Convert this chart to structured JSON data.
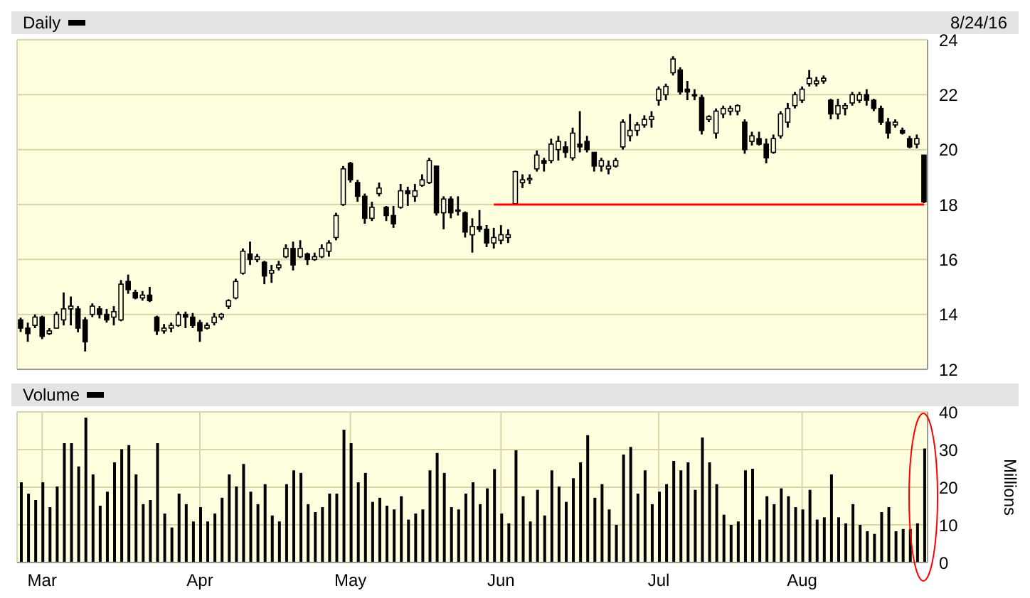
{
  "chart_data": [
    {
      "type": "candlestick",
      "title": "Daily",
      "annotations": [
        "8/24/16"
      ],
      "color": "#000000",
      "categories": [
        null,
        null,
        null,
        null,
        null,
        null,
        null,
        null,
        null,
        null,
        null,
        null,
        null,
        null,
        null,
        null,
        null,
        null,
        null,
        null,
        null,
        null,
        null,
        null,
        null,
        null,
        null,
        null,
        null,
        null,
        null,
        null,
        null,
        null,
        null,
        null,
        null,
        null,
        null,
        null,
        null,
        null,
        null,
        null,
        null,
        null,
        null,
        null,
        null,
        null,
        null,
        null,
        null,
        null,
        null,
        null,
        null,
        null,
        null,
        null,
        null,
        null,
        null,
        null,
        null,
        null,
        null,
        null,
        null,
        null,
        null,
        null,
        null,
        null,
        null,
        null,
        null,
        null,
        null,
        null,
        null,
        null,
        null,
        null,
        null,
        null,
        null,
        null,
        null,
        null,
        null,
        null,
        null,
        null,
        null,
        null,
        null,
        null,
        null,
        null,
        null,
        null,
        null,
        null,
        null,
        null,
        null,
        null,
        null,
        null,
        null,
        null,
        null,
        null,
        null,
        null,
        null,
        null,
        null,
        null,
        null,
        null,
        null,
        null,
        null,
        null,
        null
      ],
      "ohlc": [
        [
          13.8,
          13.88,
          13.36,
          13.5
        ],
        [
          13.5,
          13.7,
          13.0,
          13.3
        ],
        [
          13.6,
          14.0,
          13.5,
          13.9
        ],
        [
          13.9,
          13.95,
          13.1,
          13.2
        ],
        [
          13.3,
          13.5,
          13.25,
          13.4
        ],
        [
          13.5,
          14.1,
          13.5,
          14.0
        ],
        [
          13.8,
          14.8,
          13.6,
          14.2
        ],
        [
          14.2,
          14.65,
          13.6,
          14.3
        ],
        [
          14.2,
          14.3,
          13.35,
          13.5
        ],
        [
          13.8,
          13.9,
          12.65,
          13.0
        ],
        [
          14.0,
          14.4,
          13.9,
          14.3
        ],
        [
          14.2,
          14.3,
          13.85,
          14.0
        ],
        [
          14.0,
          14.2,
          13.7,
          13.8
        ],
        [
          13.9,
          14.3,
          13.6,
          14.1
        ],
        [
          13.8,
          15.25,
          13.75,
          15.1
        ],
        [
          15.2,
          15.45,
          14.75,
          14.9
        ],
        [
          14.8,
          14.9,
          14.55,
          14.6
        ],
        [
          14.6,
          14.85,
          14.5,
          14.7
        ],
        [
          14.7,
          15.0,
          14.45,
          14.5
        ],
        [
          13.9,
          13.95,
          13.25,
          13.4
        ],
        [
          13.4,
          13.65,
          13.3,
          13.5
        ],
        [
          13.5,
          13.7,
          13.35,
          13.6
        ],
        [
          13.6,
          14.1,
          13.55,
          14.0
        ],
        [
          14.0,
          14.1,
          13.5,
          13.9
        ],
        [
          13.9,
          14.05,
          13.5,
          13.6
        ],
        [
          13.7,
          13.8,
          13.0,
          13.4
        ],
        [
          13.5,
          13.7,
          13.45,
          13.6
        ],
        [
          13.7,
          14.05,
          13.6,
          13.9
        ],
        [
          13.9,
          14.05,
          13.8,
          14.0
        ],
        [
          14.3,
          14.55,
          14.2,
          14.5
        ],
        [
          14.6,
          15.3,
          14.55,
          15.2
        ],
        [
          15.5,
          16.4,
          15.45,
          16.3
        ],
        [
          16.2,
          16.65,
          15.8,
          16.0
        ],
        [
          16.0,
          16.2,
          15.9,
          16.1
        ],
        [
          15.9,
          15.95,
          15.1,
          15.4
        ],
        [
          15.5,
          15.8,
          15.15,
          15.6
        ],
        [
          15.7,
          15.95,
          15.6,
          15.8
        ],
        [
          16.1,
          16.55,
          16.05,
          16.4
        ],
        [
          16.4,
          16.65,
          15.6,
          15.8
        ],
        [
          16.1,
          16.7,
          16.05,
          16.4
        ],
        [
          16.2,
          16.25,
          15.8,
          16.0
        ],
        [
          16.0,
          16.25,
          15.95,
          16.1
        ],
        [
          16.1,
          16.55,
          16.05,
          16.4
        ],
        [
          16.3,
          16.7,
          16.1,
          16.6
        ],
        [
          16.8,
          17.7,
          16.7,
          17.6
        ],
        [
          18.0,
          19.4,
          17.95,
          19.3
        ],
        [
          19.5,
          19.55,
          18.8,
          18.9
        ],
        [
          18.8,
          18.9,
          18.1,
          18.3
        ],
        [
          18.3,
          18.4,
          17.3,
          17.5
        ],
        [
          17.5,
          18.1,
          17.4,
          17.9
        ],
        [
          18.4,
          18.8,
          18.3,
          18.6
        ],
        [
          17.9,
          17.95,
          17.4,
          17.6
        ],
        [
          17.6,
          17.95,
          17.15,
          17.3
        ],
        [
          17.9,
          18.75,
          17.85,
          18.5
        ],
        [
          18.5,
          18.65,
          17.95,
          18.4
        ],
        [
          18.3,
          18.75,
          18.1,
          18.5
        ],
        [
          18.7,
          19.1,
          18.65,
          18.9
        ],
        [
          18.8,
          19.7,
          18.75,
          19.6
        ],
        [
          19.4,
          19.4,
          17.6,
          17.7
        ],
        [
          17.7,
          18.3,
          17.1,
          18.2
        ],
        [
          18.2,
          18.3,
          17.5,
          17.7
        ],
        [
          17.8,
          18.3,
          17.6,
          17.8
        ],
        [
          17.7,
          17.75,
          16.8,
          17.0
        ],
        [
          16.9,
          17.5,
          16.25,
          17.2
        ],
        [
          17.2,
          17.8,
          17.0,
          17.1
        ],
        [
          17.1,
          17.25,
          16.45,
          16.6
        ],
        [
          16.6,
          17.15,
          16.4,
          16.8
        ],
        [
          16.7,
          17.25,
          16.55,
          16.9
        ],
        [
          16.8,
          17.1,
          16.6,
          16.9
        ],
        [
          18.03,
          19.23,
          18.03,
          19.2
        ],
        [
          18.8,
          19.1,
          18.6,
          18.9
        ],
        [
          18.9,
          19.1,
          18.75,
          18.95
        ],
        [
          19.3,
          19.97,
          19.2,
          19.8
        ],
        [
          19.6,
          19.7,
          19.2,
          19.5
        ],
        [
          19.6,
          20.4,
          19.5,
          20.2
        ],
        [
          20.0,
          20.5,
          19.6,
          20.3
        ],
        [
          20.1,
          20.3,
          19.7,
          19.9
        ],
        [
          19.7,
          20.8,
          19.6,
          20.6
        ],
        [
          20.2,
          21.4,
          19.9,
          20.1
        ],
        [
          20.3,
          20.5,
          19.9,
          20.0
        ],
        [
          19.9,
          19.9,
          19.2,
          19.4
        ],
        [
          19.4,
          19.7,
          19.2,
          19.6
        ],
        [
          19.3,
          19.6,
          19.1,
          19.4
        ],
        [
          19.4,
          19.7,
          19.35,
          19.6
        ],
        [
          20.1,
          21.1,
          20.0,
          21.0
        ],
        [
          20.5,
          21.3,
          20.3,
          20.7
        ],
        [
          20.7,
          21.0,
          20.5,
          20.9
        ],
        [
          20.9,
          21.25,
          20.8,
          21.1
        ],
        [
          21.1,
          21.4,
          20.8,
          21.2
        ],
        [
          21.8,
          22.3,
          21.6,
          22.2
        ],
        [
          22.0,
          22.4,
          21.8,
          22.3
        ],
        [
          22.8,
          23.4,
          22.7,
          23.3
        ],
        [
          22.9,
          23.0,
          22.0,
          22.1
        ],
        [
          22.2,
          22.5,
          21.8,
          22.1
        ],
        [
          22.0,
          22.2,
          21.8,
          22.0
        ],
        [
          21.9,
          22.0,
          20.55,
          20.7
        ],
        [
          21.1,
          21.25,
          21.0,
          21.2
        ],
        [
          20.6,
          21.5,
          20.4,
          21.4
        ],
        [
          21.3,
          21.6,
          21.15,
          21.5
        ],
        [
          21.4,
          21.6,
          21.25,
          21.5
        ],
        [
          21.4,
          21.65,
          21.25,
          21.6
        ],
        [
          21.0,
          21.1,
          19.85,
          20.0
        ],
        [
          20.3,
          20.65,
          20.15,
          20.5
        ],
        [
          20.4,
          20.65,
          20.15,
          20.2
        ],
        [
          20.2,
          20.4,
          19.5,
          19.7
        ],
        [
          19.9,
          20.55,
          19.85,
          20.4
        ],
        [
          20.5,
          21.4,
          20.4,
          21.3
        ],
        [
          21.0,
          21.7,
          20.8,
          21.5
        ],
        [
          21.6,
          22.1,
          21.5,
          22.0
        ],
        [
          21.8,
          22.3,
          21.7,
          22.2
        ],
        [
          22.4,
          22.9,
          22.3,
          22.6
        ],
        [
          22.4,
          22.65,
          22.3,
          22.5
        ],
        [
          22.5,
          22.7,
          22.4,
          22.6
        ],
        [
          21.8,
          21.85,
          21.1,
          21.3
        ],
        [
          21.3,
          21.85,
          21.1,
          21.6
        ],
        [
          21.5,
          21.7,
          21.25,
          21.6
        ],
        [
          21.7,
          22.1,
          21.6,
          22.0
        ],
        [
          21.8,
          22.1,
          21.7,
          22.0
        ],
        [
          22.0,
          22.2,
          21.6,
          21.8
        ],
        [
          21.8,
          21.85,
          21.4,
          21.5
        ],
        [
          21.5,
          21.6,
          20.9,
          21.0
        ],
        [
          21.0,
          21.15,
          20.4,
          20.6
        ],
        [
          20.9,
          21.1,
          20.8,
          21.0
        ],
        [
          20.7,
          20.8,
          20.55,
          20.6
        ],
        [
          20.4,
          20.5,
          20.05,
          20.1
        ],
        [
          20.2,
          20.55,
          20.05,
          20.4
        ],
        [
          19.8,
          19.8,
          18.05,
          18.1
        ]
      ],
      "series": [
        {
          "type": "line",
          "color": "#ff0000",
          "values": [
            null,
            null,
            null,
            null,
            null,
            null,
            null,
            null,
            null,
            null,
            null,
            null,
            null,
            null,
            null,
            null,
            null,
            null,
            null,
            null,
            null,
            null,
            null,
            null,
            null,
            null,
            null,
            null,
            null,
            null,
            null,
            null,
            null,
            null,
            null,
            null,
            null,
            null,
            null,
            null,
            null,
            null,
            null,
            null,
            null,
            null,
            null,
            null,
            null,
            null,
            null,
            null,
            null,
            null,
            null,
            null,
            null,
            null,
            null,
            null,
            null,
            null,
            null,
            null,
            null,
            null,
            18,
            18,
            18,
            18,
            18,
            18,
            18,
            18,
            18,
            18,
            18,
            18,
            18,
            18,
            18,
            18,
            18,
            18,
            18,
            18,
            18,
            18,
            18,
            18,
            18,
            18,
            18,
            18,
            18,
            18,
            18,
            18,
            18,
            18,
            18,
            18,
            18,
            18,
            18,
            18,
            18,
            18,
            18,
            18,
            18,
            18,
            18,
            18,
            18,
            18,
            18,
            18,
            18,
            18,
            18,
            18,
            18,
            18,
            18,
            18,
            18
          ]
        }
      ],
      "ylim": [
        12,
        24
      ],
      "yticks": [
        12,
        14,
        16,
        18,
        20,
        22,
        24
      ],
      "grid": true,
      "tick_labels": "y"
    },
    {
      "type": "bar",
      "title": "Volume",
      "ylabel": "Millions",
      "color": "#000000",
      "categories": [
        null,
        null,
        null,
        "Mar",
        null,
        null,
        null,
        null,
        null,
        null,
        null,
        null,
        null,
        null,
        null,
        null,
        null,
        null,
        null,
        null,
        null,
        null,
        null,
        null,
        null,
        "Apr",
        null,
        null,
        null,
        null,
        null,
        null,
        null,
        null,
        null,
        null,
        null,
        null,
        null,
        null,
        null,
        null,
        null,
        null,
        null,
        null,
        "May",
        null,
        null,
        null,
        null,
        null,
        null,
        null,
        null,
        null,
        null,
        null,
        null,
        null,
        null,
        null,
        null,
        null,
        null,
        null,
        null,
        "Jun",
        null,
        null,
        null,
        null,
        null,
        null,
        null,
        null,
        null,
        null,
        null,
        null,
        null,
        null,
        null,
        null,
        null,
        null,
        null,
        null,
        null,
        "Jul",
        null,
        null,
        null,
        null,
        null,
        null,
        null,
        null,
        null,
        null,
        null,
        null,
        null,
        null,
        null,
        null,
        null,
        null,
        null,
        "Aug",
        null,
        null,
        null,
        null,
        null,
        null,
        null,
        null,
        null,
        null,
        null,
        null,
        null,
        null,
        null,
        null,
        null
      ],
      "values": [
        21.3,
        18.3,
        16.6,
        21.3,
        14.7,
        20.2,
        31.7,
        31.7,
        25.5,
        38.5,
        23.4,
        15.1,
        18.8,
        26.6,
        30.1,
        31.2,
        23.4,
        15.5,
        16.6,
        31.7,
        13.0,
        9.3,
        18.3,
        15.5,
        10.9,
        14.7,
        10.9,
        13.0,
        17.2,
        23.4,
        20.2,
        26.2,
        18.8,
        15.5,
        20.8,
        12.5,
        10.9,
        20.8,
        24.5,
        23.8,
        15.5,
        13.4,
        14.7,
        18.3,
        18.3,
        35.3,
        31.7,
        21.3,
        23.8,
        16.1,
        17.2,
        15.1,
        14.1,
        17.6,
        11.4,
        13.0,
        14.1,
        24.5,
        29.1,
        23.8,
        14.7,
        14.1,
        18.3,
        21.3,
        15.5,
        19.7,
        24.8,
        13.0,
        10.4,
        29.8,
        17.6,
        10.9,
        19.3,
        12.5,
        24.5,
        20.2,
        16.1,
        22.4,
        26.6,
        33.8,
        17.2,
        20.8,
        14.1,
        10.0,
        28.7,
        30.7,
        18.3,
        24.5,
        15.5,
        18.8,
        20.8,
        27.0,
        24.5,
        26.6,
        19.3,
        33.2,
        26.6,
        20.8,
        12.7,
        10.0,
        10.9,
        24.5,
        24.9,
        11.4,
        17.6,
        15.5,
        19.7,
        17.6,
        14.7,
        14.1,
        19.3,
        11.4,
        12.0,
        23.4,
        12.0,
        10.4,
        15.5,
        10.0,
        8.3,
        7.6,
        13.4,
        14.7,
        8.3,
        8.9,
        8.9,
        10.4,
        30.3
      ],
      "ylim": [
        0,
        40
      ],
      "yticks": [
        0,
        10,
        20,
        30,
        40
      ],
      "grid": true
    }
  ]
}
